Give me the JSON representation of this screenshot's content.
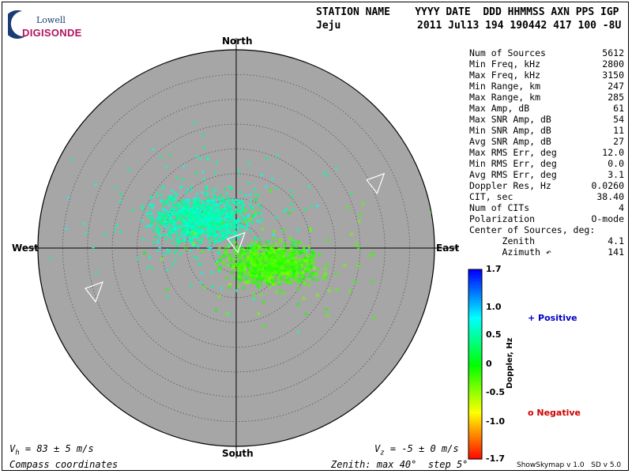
{
  "header": {
    "labels_line": "STATION NAME    YYYY DATE  DDD HHMMSS AXN PPS IGP",
    "station": "Jeju",
    "values_line": "2011 Jul13 194 190442 417 100 -8U"
  },
  "logo": {
    "top": "Lowell",
    "bottom": "DIGISONDE"
  },
  "compass": {
    "north": "North",
    "south": "South",
    "east": "East",
    "west": "West"
  },
  "stats": [
    {
      "name": "Num of Sources",
      "value": "5612"
    },
    {
      "name": "Min Freq, kHz",
      "value": "2800"
    },
    {
      "name": "Max Freq, kHz",
      "value": "3150"
    },
    {
      "name": "Min Range, km",
      "value": "247"
    },
    {
      "name": "Max Range, km",
      "value": "285"
    },
    {
      "name": "Max Amp, dB",
      "value": "61"
    },
    {
      "name": "Max SNR Amp, dB",
      "value": "54"
    },
    {
      "name": "Min SNR Amp, dB",
      "value": "11"
    },
    {
      "name": "Avg SNR Amp, dB",
      "value": "27"
    },
    {
      "name": "Max RMS Err, deg",
      "value": "12.0"
    },
    {
      "name": "Min RMS Err, deg",
      "value": "0.0"
    },
    {
      "name": "Avg RMS Err, deg",
      "value": "3.1"
    },
    {
      "name": "Doppler Res, Hz",
      "value": "0.0260"
    },
    {
      "name": "CIT, sec",
      "value": "38.40"
    },
    {
      "name": "Num of CITs",
      "value": "4"
    },
    {
      "name": "Polarization",
      "value": "O-mode"
    },
    {
      "name": "Center of Sources, deg:",
      "value": ""
    },
    {
      "name": "      Zenith",
      "value": "4.1"
    },
    {
      "name": "      Azimuth ↶",
      "value": "141"
    }
  ],
  "footer": {
    "vh_label": "V",
    "vh_sub": "h",
    "vh_value": " = 83 ± 5 m/s",
    "vz_label": "V",
    "vz_sub": "z",
    "vz_value": " = -5 ± 0 m/s",
    "coords": "Compass coordinates",
    "zenith": "Zenith: max 40°  step 5°",
    "version": "ShowSkymap v 1.0   SD v 5.0"
  },
  "legend": {
    "positive": "+ Positive",
    "negative": "o Negative"
  },
  "colors": {
    "positive": "#0000c8",
    "negative": "#d00000",
    "disc": "#a6a6a6"
  },
  "chart_data": {
    "type": "scatter",
    "projection": "polar-skymap",
    "zenith_max_deg": 40,
    "zenith_step_deg": 5,
    "colorbar": {
      "title": "Doppler, Hz",
      "range": [
        -1.7,
        1.7
      ],
      "ticks": [
        "1.7",
        "1.0",
        "0.5",
        "0",
        "-0.5",
        "-1.0",
        "-1.7"
      ]
    },
    "center_of_sources": {
      "zenith_deg": 4.1,
      "azimuth_deg": 141
    },
    "clusters": [
      {
        "name": "positive",
        "marker": "+",
        "zenith_center_deg": 9,
        "azimuth_center_deg": 310,
        "zenith_spread_deg": 7,
        "doppler_center_hz": 0.6,
        "count": 1300
      },
      {
        "name": "negative",
        "marker": "o",
        "zenith_center_deg": 8,
        "azimuth_center_deg": 115,
        "zenith_spread_deg": 7,
        "doppler_center_hz": -0.2,
        "count": 900
      }
    ],
    "triangles": [
      {
        "zenith_deg": 1.2,
        "azimuth_deg": 0
      },
      {
        "zenith_deg": 31,
        "azimuth_deg": 65
      },
      {
        "zenith_deg": 30,
        "azimuth_deg": 253
      }
    ]
  }
}
